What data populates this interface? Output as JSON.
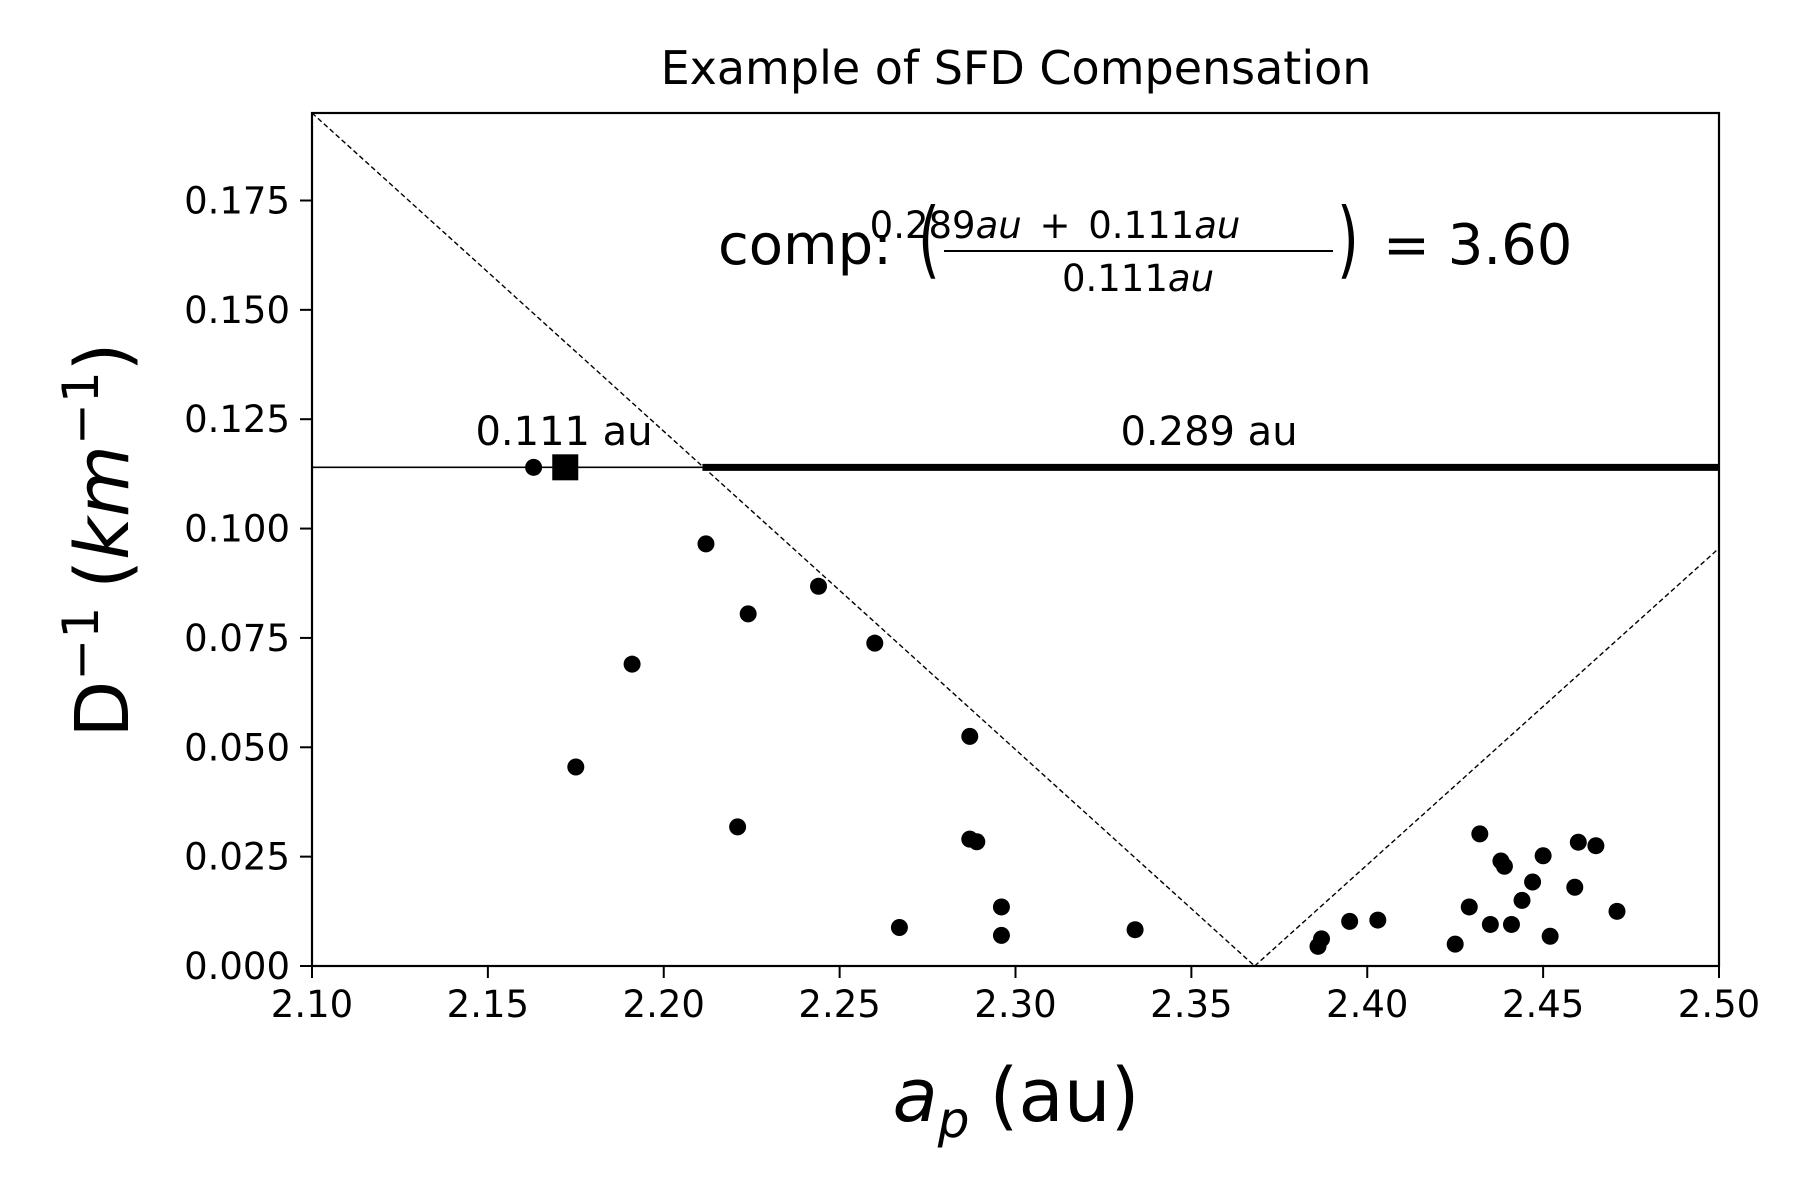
{
  "chart_data": {
    "type": "scatter",
    "title": "Example of SFD Compensation",
    "xlabel": "a_p (au)",
    "xlabel_main": "a",
    "xlabel_sub": "p",
    "xlabel_unit": "(au)",
    "ylabel": "D^-1 (km^-1)",
    "ylabel_main": "D",
    "ylabel_sup": "−1",
    "ylabel_unit_open": "(",
    "ylabel_unit_km": "km",
    "ylabel_unit_sup": "−1",
    "ylabel_unit_close": ")",
    "xlim": [
      2.1,
      2.5
    ],
    "ylim": [
      0.0,
      0.195
    ],
    "x_ticks": [
      "2.10",
      "2.15",
      "2.20",
      "2.25",
      "2.30",
      "2.35",
      "2.40",
      "2.45",
      "2.50"
    ],
    "y_ticks": [
      "0.000",
      "0.025",
      "0.050",
      "0.075",
      "0.100",
      "0.125",
      "0.150",
      "0.175"
    ],
    "grid": false,
    "points": [
      {
        "x": 2.163,
        "y": 0.114
      },
      {
        "x": 2.175,
        "y": 0.0455
      },
      {
        "x": 2.191,
        "y": 0.069
      },
      {
        "x": 2.212,
        "y": 0.0965
      },
      {
        "x": 2.221,
        "y": 0.0318
      },
      {
        "x": 2.224,
        "y": 0.0805
      },
      {
        "x": 2.244,
        "y": 0.0868
      },
      {
        "x": 2.26,
        "y": 0.0738
      },
      {
        "x": 2.267,
        "y": 0.0088
      },
      {
        "x": 2.287,
        "y": 0.0525
      },
      {
        "x": 2.287,
        "y": 0.029
      },
      {
        "x": 2.289,
        "y": 0.0284
      },
      {
        "x": 2.296,
        "y": 0.0135
      },
      {
        "x": 2.296,
        "y": 0.007
      },
      {
        "x": 2.334,
        "y": 0.0083
      },
      {
        "x": 2.386,
        "y": 0.0045
      },
      {
        "x": 2.387,
        "y": 0.0062
      },
      {
        "x": 2.395,
        "y": 0.0102
      },
      {
        "x": 2.403,
        "y": 0.0105
      },
      {
        "x": 2.425,
        "y": 0.005
      },
      {
        "x": 2.429,
        "y": 0.0135
      },
      {
        "x": 2.432,
        "y": 0.0302
      },
      {
        "x": 2.435,
        "y": 0.0095
      },
      {
        "x": 2.438,
        "y": 0.024
      },
      {
        "x": 2.439,
        "y": 0.0228
      },
      {
        "x": 2.441,
        "y": 0.0095
      },
      {
        "x": 2.444,
        "y": 0.015
      },
      {
        "x": 2.447,
        "y": 0.0192
      },
      {
        "x": 2.45,
        "y": 0.0252
      },
      {
        "x": 2.452,
        "y": 0.0068
      },
      {
        "x": 2.459,
        "y": 0.018
      },
      {
        "x": 2.46,
        "y": 0.0283
      },
      {
        "x": 2.465,
        "y": 0.0275
      },
      {
        "x": 2.471,
        "y": 0.0125
      }
    ],
    "highlight_point": {
      "x": 2.172,
      "y": 0.114,
      "marker": "square"
    },
    "reference_line_y": 0.114,
    "thin_segment": {
      "x_start": 2.1,
      "x_end": 2.211,
      "label": "0.111 au"
    },
    "thick_segment": {
      "x_start": 2.211,
      "x_end": 2.5,
      "label": "0.289 au"
    },
    "boundary_lines": {
      "style": "dashed",
      "vertex_x": 2.368,
      "left": [
        {
          "x": 2.1,
          "y": 0.195
        },
        {
          "x": 2.368,
          "y": 0.0
        }
      ],
      "right": [
        {
          "x": 2.368,
          "y": 0.0
        },
        {
          "x": 2.5,
          "y": 0.0955
        }
      ]
    },
    "annotation": {
      "prefix": "comp:",
      "numerator_a": "0.289",
      "numerator_b": "0.111",
      "denominator": "0.111",
      "unit": "au",
      "plus": "+",
      "open_paren": "(",
      "close_paren": ")",
      "equals": "= 3.60",
      "value": 3.6
    }
  }
}
